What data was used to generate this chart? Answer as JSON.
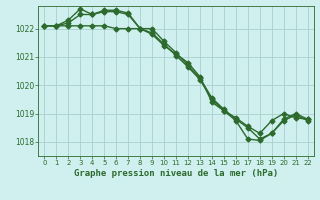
{
  "xlabel": "Graphe pression niveau de la mer (hPa)",
  "bg_color": "#cff0ee",
  "grid_color": "#aacfcc",
  "line_color": "#2d6a2d",
  "marker": "D",
  "markersize": 2.5,
  "linewidth": 1.0,
  "ylim": [
    1017.5,
    1022.8
  ],
  "xlim": [
    -0.5,
    22.5
  ],
  "yticks": [
    1018,
    1019,
    1020,
    1021,
    1022
  ],
  "xticks": [
    0,
    1,
    2,
    3,
    4,
    5,
    6,
    7,
    8,
    9,
    10,
    11,
    12,
    13,
    14,
    15,
    16,
    17,
    18,
    19,
    20,
    21,
    22
  ],
  "series": [
    [
      1022.1,
      1022.1,
      1022.2,
      1022.5,
      1022.5,
      1022.6,
      1022.6,
      1022.5,
      1022.0,
      1021.8,
      1021.4,
      1021.1,
      1020.8,
      1020.3,
      1019.4,
      1019.1,
      1018.85,
      1018.55,
      1018.3,
      1018.75,
      1019.0,
      1018.85,
      1018.8
    ],
    [
      1022.1,
      1022.1,
      1022.3,
      1022.7,
      1022.5,
      1022.65,
      1022.65,
      1022.55,
      1022.0,
      1022.0,
      1021.55,
      1021.15,
      1020.7,
      1020.25,
      1019.55,
      1019.15,
      1018.8,
      1018.5,
      1018.1,
      1018.3,
      1018.8,
      1019.0,
      1018.8
    ],
    [
      1022.1,
      1022.1,
      1022.1,
      1022.1,
      1022.1,
      1022.1,
      1022.0,
      1022.0,
      1022.0,
      1021.85,
      1021.45,
      1021.05,
      1020.65,
      1020.2,
      1019.5,
      1019.1,
      1018.75,
      1018.1,
      1018.05,
      1018.3,
      1018.75,
      1018.95,
      1018.75
    ]
  ]
}
